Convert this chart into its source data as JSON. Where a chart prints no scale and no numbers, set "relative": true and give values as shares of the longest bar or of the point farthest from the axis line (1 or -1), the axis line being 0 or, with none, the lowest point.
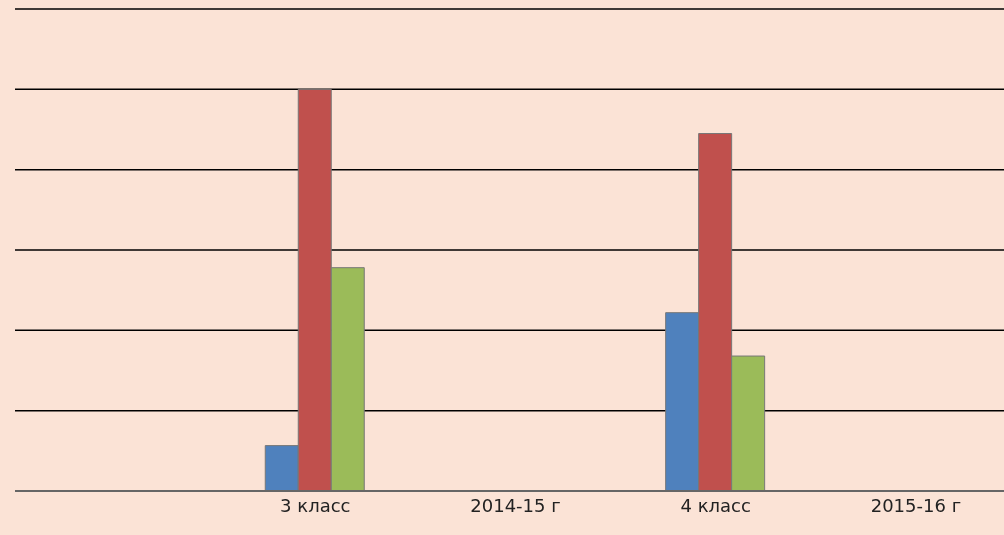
{
  "chart_data": {
    "type": "bar",
    "relative": true,
    "categories": [
      null,
      "3 класс",
      "2014-15 г",
      "4 класс",
      "2015-16 г"
    ],
    "series": [
      {
        "color": "#4f81bd",
        "values": [
          null,
          0.113,
          null,
          0.444,
          null
        ]
      },
      {
        "color": "#c0504d",
        "values": [
          null,
          1,
          null,
          0.89,
          null
        ]
      },
      {
        "color": "#9bbb59",
        "values": [
          null,
          0.556,
          null,
          0.336,
          null
        ]
      }
    ],
    "grid": "y"
  }
}
